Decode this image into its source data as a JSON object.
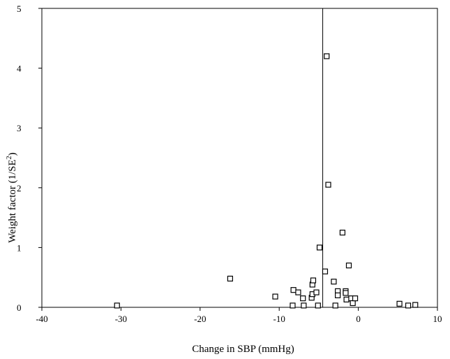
{
  "chart_data": {
    "type": "scatter",
    "title": "",
    "xlabel": "Change in SBP (mmHg)",
    "ylabel_main": "Weight factor (1/SE",
    "ylabel_sup": "2",
    "ylabel_tail": ")",
    "xlim": [
      -40,
      10
    ],
    "ylim": [
      0,
      5
    ],
    "xticks": [
      -40,
      -30,
      -20,
      -10,
      0,
      10
    ],
    "yticks": [
      0,
      1,
      2,
      3,
      4,
      5
    ],
    "reference_line_x": -4.5,
    "marker": "open-square",
    "grid": false,
    "legend": "none",
    "points": [
      {
        "x": -30.5,
        "y": 0.03
      },
      {
        "x": -16.2,
        "y": 0.48
      },
      {
        "x": -10.5,
        "y": 0.18
      },
      {
        "x": -8.3,
        "y": 0.03
      },
      {
        "x": -8.2,
        "y": 0.29
      },
      {
        "x": -7.6,
        "y": 0.25
      },
      {
        "x": -7.0,
        "y": 0.15
      },
      {
        "x": -6.9,
        "y": 0.03
      },
      {
        "x": -5.9,
        "y": 0.16
      },
      {
        "x": -5.8,
        "y": 0.22
      },
      {
        "x": -5.8,
        "y": 0.38
      },
      {
        "x": -5.7,
        "y": 0.45
      },
      {
        "x": -5.3,
        "y": 0.25
      },
      {
        "x": -5.1,
        "y": 0.03
      },
      {
        "x": -4.9,
        "y": 1.0
      },
      {
        "x": -4.2,
        "y": 0.6
      },
      {
        "x": -4.0,
        "y": 4.2
      },
      {
        "x": -3.8,
        "y": 2.05
      },
      {
        "x": -3.1,
        "y": 0.43
      },
      {
        "x": -2.9,
        "y": 0.03
      },
      {
        "x": -2.6,
        "y": 0.27
      },
      {
        "x": -2.6,
        "y": 0.2
      },
      {
        "x": -2.0,
        "y": 1.25
      },
      {
        "x": -1.6,
        "y": 0.27
      },
      {
        "x": -1.6,
        "y": 0.24
      },
      {
        "x": -1.5,
        "y": 0.13
      },
      {
        "x": -1.2,
        "y": 0.7
      },
      {
        "x": -0.9,
        "y": 0.15
      },
      {
        "x": -0.7,
        "y": 0.07
      },
      {
        "x": -0.4,
        "y": 0.15
      },
      {
        "x": 5.2,
        "y": 0.06
      },
      {
        "x": 6.3,
        "y": 0.03
      },
      {
        "x": 7.2,
        "y": 0.04
      }
    ]
  }
}
